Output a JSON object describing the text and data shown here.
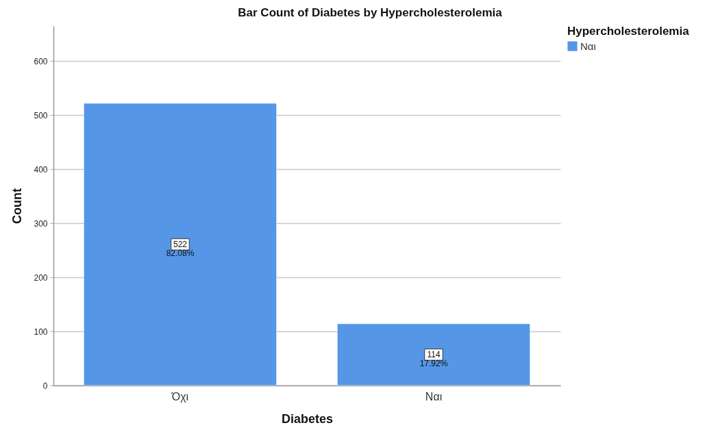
{
  "chart_data": {
    "type": "bar",
    "title": "Bar Count of Diabetes by Hypercholesterolemia",
    "xlabel": "Diabetes",
    "ylabel": "Count",
    "legend_title": "Hypercholesterolemia",
    "categories": [
      "Όχι",
      "Ναι"
    ],
    "series": [
      {
        "name": "Ναι",
        "color": "#5596e6",
        "values": [
          522,
          114
        ],
        "value_labels": [
          "522\n82.08%",
          "114\n17.92%"
        ]
      }
    ],
    "ylim": [
      0,
      665
    ],
    "yticks": [
      0,
      100,
      200,
      300,
      400,
      500,
      600
    ],
    "grid": "y",
    "legend": "top right"
  }
}
